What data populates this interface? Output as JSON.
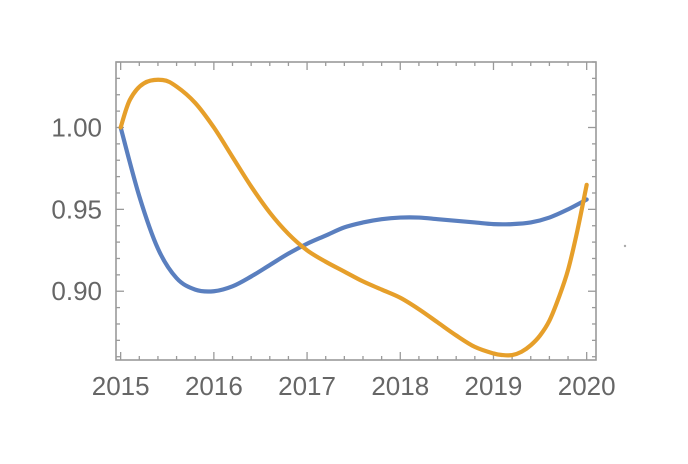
{
  "chart_data": {
    "type": "line",
    "title": "",
    "xlabel": "",
    "ylabel": "",
    "xlim": [
      2014.95,
      2020.1
    ],
    "ylim": [
      0.858,
      1.04
    ],
    "x_ticks": [
      {
        "value": 2015,
        "label": "2015"
      },
      {
        "value": 2016,
        "label": "2016"
      },
      {
        "value": 2017,
        "label": "2017"
      },
      {
        "value": 2018,
        "label": "2018"
      },
      {
        "value": 2019,
        "label": "2019"
      },
      {
        "value": 2020,
        "label": "2020"
      }
    ],
    "y_ticks": [
      {
        "value": 0.9,
        "label": "0.90"
      },
      {
        "value": 0.95,
        "label": "0.95"
      },
      {
        "value": 1.0,
        "label": "1.00"
      }
    ],
    "grid": false,
    "legend": "none",
    "series": [
      {
        "color": "#5a7fbf",
        "x": [
          2015.0,
          2015.2,
          2015.4,
          2015.6,
          2015.8,
          2016.0,
          2016.2,
          2016.4,
          2016.6,
          2016.8,
          2017.0,
          2017.2,
          2017.4,
          2017.6,
          2017.8,
          2018.0,
          2018.2,
          2018.4,
          2018.6,
          2018.8,
          2019.0,
          2019.2,
          2019.4,
          2019.6,
          2019.8,
          2020.0
        ],
        "y": [
          1.0,
          0.958,
          0.926,
          0.908,
          0.901,
          0.9,
          0.903,
          0.909,
          0.916,
          0.923,
          0.929,
          0.934,
          0.939,
          0.942,
          0.944,
          0.945,
          0.945,
          0.944,
          0.943,
          0.942,
          0.941,
          0.941,
          0.942,
          0.945,
          0.95,
          0.956
        ]
      },
      {
        "color": "#e69f2a",
        "x": [
          2015.0,
          2015.1,
          2015.25,
          2015.45,
          2015.6,
          2015.8,
          2016.0,
          2016.2,
          2016.4,
          2016.6,
          2016.8,
          2017.0,
          2017.2,
          2017.4,
          2017.6,
          2017.8,
          2018.0,
          2018.2,
          2018.4,
          2018.6,
          2018.8,
          2019.0,
          2019.1,
          2019.2,
          2019.3,
          2019.4,
          2019.5,
          2019.6,
          2019.7,
          2019.8,
          2019.9,
          2020.0
        ],
        "y": [
          1.0,
          1.017,
          1.027,
          1.029,
          1.025,
          1.015,
          1.0,
          0.982,
          0.964,
          0.948,
          0.935,
          0.925,
          0.918,
          0.912,
          0.906,
          0.901,
          0.896,
          0.889,
          0.881,
          0.873,
          0.866,
          0.862,
          0.861,
          0.861,
          0.863,
          0.867,
          0.873,
          0.882,
          0.896,
          0.913,
          0.937,
          0.965
        ]
      }
    ]
  }
}
